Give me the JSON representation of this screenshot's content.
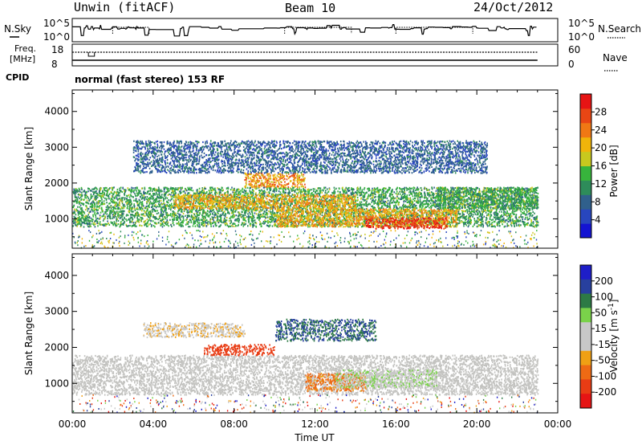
{
  "header": {
    "site": "Unwin (fitACF)",
    "beam": "Beam 10",
    "date": "24/Oct/2012"
  },
  "status_panels": {
    "nsky_label": "N.Sky",
    "nsky_ticks": [
      "10^5",
      "10^0"
    ],
    "nsearch_label": "N.Search",
    "nsearch_ticks": [
      "10^5",
      "10^0"
    ],
    "freq_label_1": "Freq.",
    "freq_label_2": "[MHz]",
    "freq_ticks": [
      "18",
      "8"
    ],
    "nave_label": "Nave",
    "nave_ticks": [
      "60",
      "0"
    ],
    "cpid_label": "CPID",
    "cpid_text": "normal (fast stereo) 153 RF"
  },
  "colors": {
    "power_scale": [
      "#1414d2",
      "#2846be",
      "#30608c",
      "#2e8c5a",
      "#37b43c",
      "#c8c81e",
      "#f0b40a",
      "#f07814",
      "#e84614",
      "#e61414"
    ],
    "velocity_scale": [
      "#1e1ec8",
      "#28409e",
      "#2d7a45",
      "#7ad24a",
      "#c8c8c8",
      "#c8c8c8",
      "#f0a014",
      "#ee6a14",
      "#e83c14",
      "#e61414"
    ],
    "scatter_gray": "#c3c3c0"
  },
  "chart_data": [
    {
      "type": "heatmap",
      "title": "",
      "xlabel": "",
      "ylabel": "Slant Range [km]",
      "x_ticks": [
        "00:00",
        "04:00",
        "08:00",
        "12:00",
        "16:00",
        "20:00",
        "00:00"
      ],
      "xlim_hours": [
        0,
        24
      ],
      "y_ticks": [
        1000,
        2000,
        3000,
        4000
      ],
      "ylim": [
        180,
        4600
      ],
      "colorbar": {
        "label": "Power [dB]",
        "ticks": [
          4,
          8,
          12,
          16,
          20,
          24,
          28
        ],
        "range": [
          0,
          30
        ]
      },
      "echo_bands": [
        {
          "start_h": 0.0,
          "end_h": 23.0,
          "range_km": [
            800,
            1900
          ],
          "typical": "8-16 dB"
        },
        {
          "start_h": 5.0,
          "end_h": 14.0,
          "range_km": [
            1300,
            1700
          ],
          "typical": "16-24 dB"
        },
        {
          "start_h": 8.5,
          "end_h": 11.5,
          "range_km": [
            1900,
            2300
          ],
          "typical": "16-26 dB"
        },
        {
          "start_h": 10.0,
          "end_h": 19.0,
          "range_km": [
            800,
            1300
          ],
          "typical": "16-24 dB"
        },
        {
          "start_h": 14.5,
          "end_h": 18.5,
          "range_km": [
            750,
            1050
          ],
          "typical": "24-30 dB"
        },
        {
          "start_h": 3.0,
          "end_h": 20.5,
          "range_km": [
            2300,
            3200
          ],
          "typical": "4-10 dB"
        },
        {
          "start_h": 18.0,
          "end_h": 23.0,
          "range_km": [
            1300,
            1900
          ],
          "typical": "8-16 dB"
        }
      ]
    },
    {
      "type": "heatmap",
      "title": "",
      "xlabel": "Time UT",
      "ylabel": "Slant Range [km]",
      "x_ticks": [
        "00:00",
        "04:00",
        "08:00",
        "12:00",
        "16:00",
        "20:00",
        "00:00"
      ],
      "xlim_hours": [
        0,
        24
      ],
      "y_ticks": [
        1000,
        2000,
        3000,
        4000
      ],
      "ylim": [
        180,
        4600
      ],
      "colorbar": {
        "label": "Velocity [m s^-1]",
        "ticks": [
          200,
          100,
          50,
          15,
          -15,
          -50,
          -100,
          -200
        ],
        "range": [
          -250,
          250
        ]
      },
      "echo_bands": [
        {
          "start_h": 0.0,
          "end_h": 23.0,
          "range_km": [
            700,
            1800
          ],
          "typical": "ground scatter (gray)"
        },
        {
          "start_h": 6.5,
          "end_h": 10.0,
          "range_km": [
            1800,
            2100
          ],
          "typical": "-200 to -150 m/s"
        },
        {
          "start_h": 11.5,
          "end_h": 14.5,
          "range_km": [
            800,
            1300
          ],
          "typical": "-150 to -80 m/s"
        },
        {
          "start_h": 13.0,
          "end_h": 18.0,
          "range_km": [
            900,
            1400
          ],
          "typical": "30 to 60 m/s"
        },
        {
          "start_h": 10.0,
          "end_h": 15.0,
          "range_km": [
            2200,
            2800
          ],
          "typical": "100 to 200 m/s"
        },
        {
          "start_h": 3.5,
          "end_h": 8.5,
          "range_km": [
            2300,
            2700
          ],
          "typical": "-60 to -30 m/s"
        }
      ]
    }
  ]
}
